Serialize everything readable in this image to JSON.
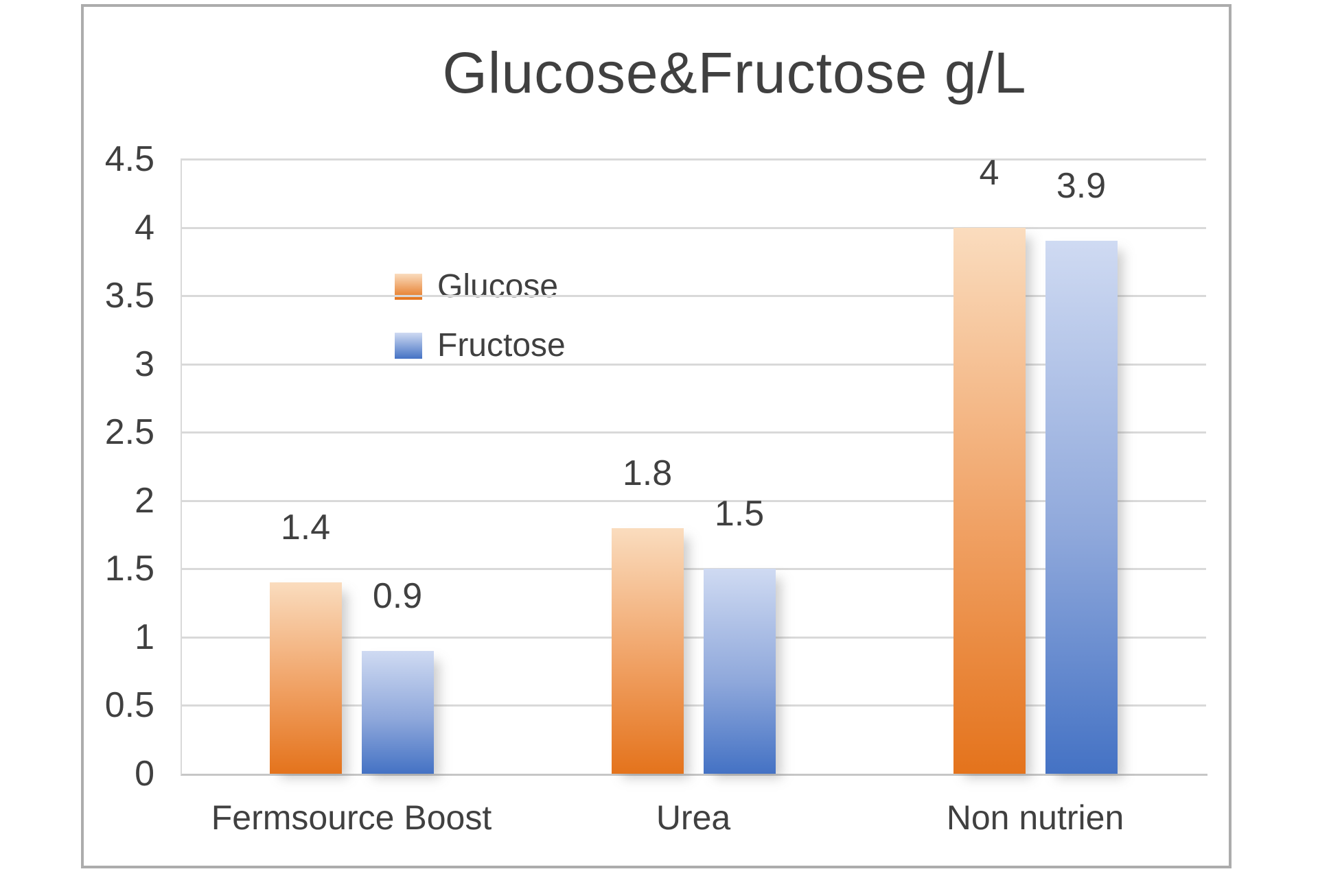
{
  "chart_data": {
    "type": "bar",
    "title": "Glucose&Fructose g/L",
    "categories": [
      "Fermsource Boost",
      "Urea",
      "Non nutrien"
    ],
    "series": [
      {
        "name": "Glucose",
        "values": [
          1.4,
          1.8,
          4
        ],
        "color_top": "#FADCBE",
        "color_mid": "#F0A164",
        "color_bottom": "#E4731C"
      },
      {
        "name": "Fructose",
        "values": [
          0.9,
          1.5,
          3.9
        ],
        "color_top": "#CFDAF2",
        "color_mid": "#8FA8DB",
        "color_bottom": "#4472C4"
      }
    ],
    "ylim": [
      0,
      4.5
    ],
    "ytick_step": 0.5,
    "ytick_labels": [
      "0",
      "0.5",
      "1",
      "1.5",
      "2",
      "2.5",
      "3",
      "3.5",
      "4",
      "4.5"
    ],
    "grid": true,
    "legend_position": "inside-upper-left",
    "data_labels_shown": true,
    "text_color": "#404040",
    "gridline_color": "#D9D9D9",
    "axis_line_color": "#C6C6C6",
    "frame_border_color": "#ACACAC",
    "background": "#FFFFFF"
  }
}
